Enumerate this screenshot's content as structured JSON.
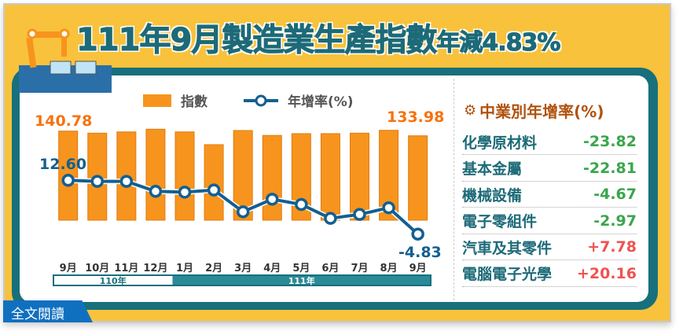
{
  "title": {
    "main": "111年9月製造業生產指數",
    "suffix": "年減4.83%"
  },
  "chart_data": {
    "type": "bar+line",
    "categories": [
      "9月",
      "10月",
      "11月",
      "12月",
      "1月",
      "2月",
      "3月",
      "4月",
      "5月",
      "6月",
      "7月",
      "8月",
      "9月"
    ],
    "year_groups": [
      {
        "label": "110年",
        "span": 4
      },
      {
        "label": "111年",
        "span": 9
      }
    ],
    "series": [
      {
        "name": "指數",
        "type": "bar",
        "color": "#f7941d",
        "values": [
          140.78,
          137.8,
          139.6,
          143.5,
          139.6,
          121.2,
          141.6,
          134.5,
          137.1,
          137.1,
          137.8,
          141.9,
          133.98
        ]
      },
      {
        "name": "年增率(%)",
        "type": "line",
        "color": "#135f91",
        "values": [
          12.6,
          12.26,
          12.26,
          9.03,
          8.77,
          9.45,
          2.4,
          6.48,
          4.78,
          0.27,
          1.55,
          3.7,
          -4.83
        ]
      }
    ],
    "data_labels": {
      "bar_first": "140.78",
      "bar_last": "133.98",
      "line_first": "12.60",
      "line_last": "-4.83"
    },
    "legend_position": "top"
  },
  "panel": {
    "title": "中業別年增率(%)",
    "rows": [
      {
        "label": "化學原材料",
        "value": "-23.82",
        "color": "#3aa64c"
      },
      {
        "label": "基本金屬",
        "value": "-22.81",
        "color": "#3aa64c"
      },
      {
        "label": "機械設備",
        "value": "-4.67",
        "color": "#3aa64c"
      },
      {
        "label": "電子零組件",
        "value": "-2.97",
        "color": "#3aa64c"
      },
      {
        "label": "汽車及其零件",
        "value": "+7.78",
        "color": "#ef5350"
      },
      {
        "label": "電腦電子光學",
        "value": "+20.16",
        "color": "#ef5350"
      }
    ]
  },
  "badge": "全文閱讀"
}
